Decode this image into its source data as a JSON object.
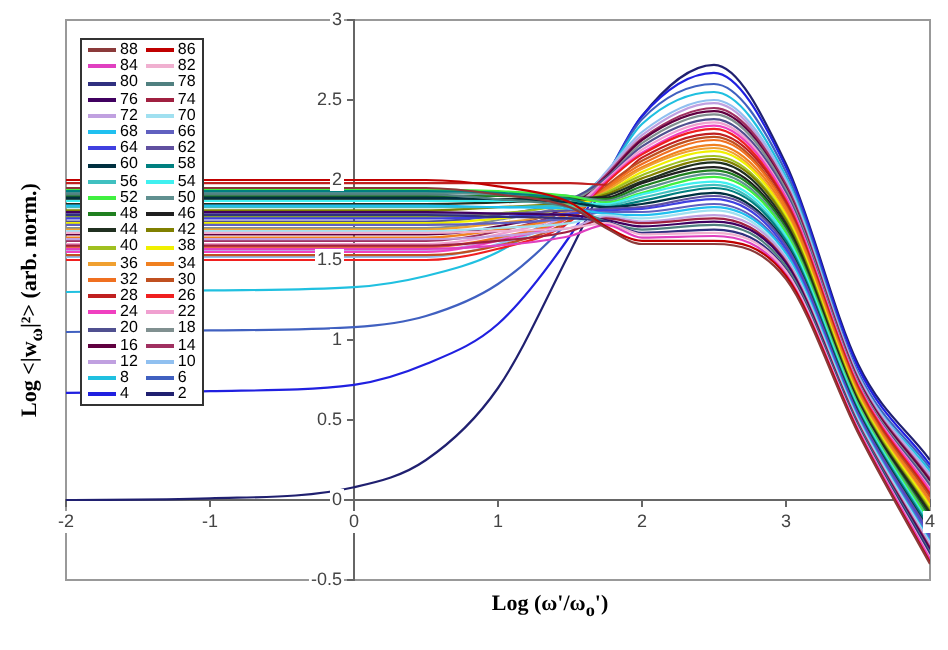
{
  "chart_data": {
    "type": "line",
    "xlabel": "Log (ω'/ω$_{o}$')",
    "ylabel": "Log <|w$_{ω}$|²> (arb. norm.)",
    "x": [
      -2,
      -1,
      0,
      0.5,
      1,
      1.5,
      1.75,
      2,
      2.5,
      3,
      3.5,
      4
    ],
    "xlim": [
      -2,
      4
    ],
    "xticks": [
      -2,
      -1,
      0,
      1,
      2,
      3,
      4
    ],
    "ylim": [
      -0.5,
      3
    ],
    "yticks": [
      -0.5,
      0,
      0.5,
      1,
      1.5,
      2,
      2.5,
      3
    ],
    "grid": false,
    "legend": "top left",
    "marker": "none",
    "line_style": "solid",
    "series": [
      {
        "name": "88",
        "color": "#8b3a3a",
        "values": [
          1.95,
          1.95,
          1.95,
          1.95,
          1.91,
          1.83,
          1.7,
          1.6,
          1.6,
          1.38,
          0.42,
          -0.4
        ]
      },
      {
        "name": "86",
        "color": "#c00000",
        "values": [
          2.0,
          2.0,
          2.0,
          2.0,
          1.96,
          1.86,
          1.71,
          1.62,
          1.62,
          1.4,
          0.43,
          -0.39
        ]
      },
      {
        "name": "84",
        "color": "#e040c0",
        "values": [
          1.57,
          1.57,
          1.57,
          1.57,
          1.59,
          1.65,
          1.72,
          1.64,
          1.65,
          1.41,
          0.44,
          -0.37
        ]
      },
      {
        "name": "82",
        "color": "#f0b0d0",
        "values": [
          1.67,
          1.67,
          1.67,
          1.67,
          1.68,
          1.7,
          1.73,
          1.66,
          1.67,
          1.43,
          0.45,
          -0.36
        ]
      },
      {
        "name": "80",
        "color": "#303080",
        "values": [
          1.78,
          1.78,
          1.78,
          1.78,
          1.77,
          1.76,
          1.74,
          1.67,
          1.69,
          1.44,
          0.46,
          -0.34
        ]
      },
      {
        "name": "78",
        "color": "#508080",
        "values": [
          1.91,
          1.91,
          1.91,
          1.91,
          1.88,
          1.83,
          1.74,
          1.69,
          1.72,
          1.46,
          0.47,
          -0.33
        ]
      },
      {
        "name": "76",
        "color": "#400060",
        "values": [
          1.8,
          1.8,
          1.8,
          1.8,
          1.79,
          1.78,
          1.75,
          1.71,
          1.74,
          1.48,
          0.47,
          -0.31
        ]
      },
      {
        "name": "74",
        "color": "#a02040",
        "values": [
          1.59,
          1.59,
          1.59,
          1.59,
          1.62,
          1.68,
          1.76,
          1.73,
          1.76,
          1.49,
          0.48,
          -0.3
        ]
      },
      {
        "name": "72",
        "color": "#c0a0e0",
        "values": [
          1.63,
          1.63,
          1.63,
          1.63,
          1.65,
          1.7,
          1.77,
          1.74,
          1.78,
          1.51,
          0.49,
          -0.28
        ]
      },
      {
        "name": "70",
        "color": "#a0e0f0",
        "values": [
          1.68,
          1.68,
          1.68,
          1.68,
          1.7,
          1.73,
          1.78,
          1.76,
          1.81,
          1.52,
          0.5,
          -0.27
        ]
      },
      {
        "name": "68",
        "color": "#20c0f0",
        "values": [
          1.84,
          1.84,
          1.84,
          1.84,
          1.83,
          1.82,
          1.79,
          1.78,
          1.83,
          1.54,
          0.51,
          -0.26
        ]
      },
      {
        "name": "66",
        "color": "#6060c0",
        "values": [
          1.72,
          1.72,
          1.72,
          1.72,
          1.73,
          1.76,
          1.8,
          1.8,
          1.85,
          1.55,
          0.52,
          -0.24
        ]
      },
      {
        "name": "64",
        "color": "#4040e0",
        "values": [
          1.76,
          1.76,
          1.76,
          1.76,
          1.77,
          1.79,
          1.81,
          1.82,
          1.88,
          1.57,
          0.53,
          -0.23
        ]
      },
      {
        "name": "62",
        "color": "#6050a0",
        "values": [
          1.79,
          1.79,
          1.79,
          1.79,
          1.79,
          1.81,
          1.82,
          1.83,
          1.9,
          1.59,
          0.54,
          -0.21
        ]
      },
      {
        "name": "60",
        "color": "#003040",
        "values": [
          1.89,
          1.89,
          1.89,
          1.89,
          1.88,
          1.86,
          1.83,
          1.85,
          1.92,
          1.6,
          0.55,
          -0.2
        ]
      },
      {
        "name": "58",
        "color": "#008080",
        "values": [
          1.93,
          1.93,
          1.93,
          1.93,
          1.92,
          1.88,
          1.83,
          1.87,
          1.95,
          1.62,
          0.56,
          -0.18
        ]
      },
      {
        "name": "56",
        "color": "#40c0c0",
        "values": [
          1.83,
          1.83,
          1.83,
          1.83,
          1.83,
          1.84,
          1.84,
          1.89,
          1.97,
          1.63,
          0.57,
          -0.17
        ]
      },
      {
        "name": "54",
        "color": "#40f0f0",
        "values": [
          1.87,
          1.87,
          1.87,
          1.87,
          1.87,
          1.86,
          1.85,
          1.91,
          1.99,
          1.65,
          0.58,
          -0.16
        ]
      },
      {
        "name": "52",
        "color": "#40f040",
        "values": [
          1.94,
          1.94,
          1.94,
          1.94,
          1.93,
          1.9,
          1.86,
          1.92,
          2.02,
          1.67,
          0.59,
          -0.14
        ]
      },
      {
        "name": "50",
        "color": "#609090",
        "values": [
          1.92,
          1.92,
          1.92,
          1.92,
          1.91,
          1.9,
          1.87,
          1.94,
          2.04,
          1.68,
          0.6,
          -0.13
        ]
      },
      {
        "name": "48",
        "color": "#208020",
        "values": [
          1.9,
          1.9,
          1.9,
          1.9,
          1.9,
          1.89,
          1.88,
          1.96,
          2.06,
          1.7,
          0.6,
          -0.11
        ]
      },
      {
        "name": "46",
        "color": "#202020",
        "values": [
          1.88,
          1.88,
          1.88,
          1.88,
          1.88,
          1.89,
          1.89,
          1.98,
          2.08,
          1.71,
          0.61,
          -0.1
        ]
      },
      {
        "name": "44",
        "color": "#203020",
        "values": [
          1.85,
          1.85,
          1.85,
          1.85,
          1.86,
          1.88,
          1.9,
          1.99,
          2.11,
          1.73,
          0.62,
          -0.08
        ]
      },
      {
        "name": "42",
        "color": "#808000",
        "values": [
          1.81,
          1.81,
          1.81,
          1.81,
          1.83,
          1.86,
          1.91,
          2.01,
          2.13,
          1.75,
          0.63,
          -0.07
        ]
      },
      {
        "name": "40",
        "color": "#a0c020",
        "values": [
          1.77,
          1.77,
          1.77,
          1.77,
          1.79,
          1.85,
          1.92,
          2.03,
          2.15,
          1.76,
          0.64,
          -0.06
        ]
      },
      {
        "name": "38",
        "color": "#f0f000",
        "values": [
          1.73,
          1.73,
          1.73,
          1.73,
          1.76,
          1.83,
          1.92,
          2.05,
          2.18,
          1.78,
          0.65,
          -0.04
        ]
      },
      {
        "name": "36",
        "color": "#f0a030",
        "values": [
          1.69,
          1.69,
          1.69,
          1.69,
          1.73,
          1.81,
          1.93,
          2.07,
          2.2,
          1.79,
          0.66,
          -0.03
        ]
      },
      {
        "name": "34",
        "color": "#f08020",
        "values": [
          1.64,
          1.64,
          1.64,
          1.64,
          1.69,
          1.79,
          1.94,
          2.08,
          2.22,
          1.81,
          0.67,
          -0.01
        ]
      },
      {
        "name": "32",
        "color": "#f07020",
        "values": [
          1.58,
          1.58,
          1.58,
          1.58,
          1.64,
          1.77,
          1.95,
          2.1,
          2.25,
          1.83,
          0.68,
          0.0
        ]
      },
      {
        "name": "30",
        "color": "#c05020",
        "values": [
          1.53,
          1.53,
          1.53,
          1.53,
          1.59,
          1.75,
          1.96,
          2.12,
          2.27,
          1.84,
          0.69,
          0.02
        ]
      },
      {
        "name": "28",
        "color": "#c02020",
        "values": [
          1.98,
          1.98,
          1.98,
          1.98,
          1.98,
          1.98,
          1.97,
          2.14,
          2.29,
          1.86,
          0.7,
          0.03
        ]
      },
      {
        "name": "26",
        "color": "#f02020",
        "values": [
          1.5,
          1.5,
          1.5,
          1.5,
          1.57,
          1.74,
          1.98,
          2.16,
          2.32,
          1.87,
          0.71,
          0.04
        ]
      },
      {
        "name": "24",
        "color": "#f040c0",
        "values": [
          1.55,
          1.55,
          1.55,
          1.55,
          1.62,
          1.77,
          1.99,
          2.17,
          2.34,
          1.89,
          0.72,
          0.06
        ]
      },
      {
        "name": "22",
        "color": "#f0a0d0",
        "values": [
          1.6,
          1.6,
          1.6,
          1.6,
          1.66,
          1.805,
          2.0,
          2.19,
          2.36,
          1.9,
          0.725,
          0.07
        ]
      },
      {
        "name": "20",
        "color": "#505090",
        "values": [
          1.74,
          1.74,
          1.74,
          1.74,
          1.78,
          1.88,
          2.01,
          2.21,
          2.38,
          1.92,
          0.73,
          0.09
        ]
      },
      {
        "name": "18",
        "color": "#809090",
        "values": [
          1.7,
          1.7,
          1.7,
          1.7,
          1.75,
          1.86,
          2.01,
          2.23,
          2.41,
          1.94,
          0.74,
          0.1
        ]
      },
      {
        "name": "16",
        "color": "#600040",
        "values": [
          1.66,
          1.66,
          1.66,
          1.66,
          1.71,
          1.84,
          2.02,
          2.25,
          2.43,
          1.95,
          0.75,
          0.12
        ]
      },
      {
        "name": "14",
        "color": "#a03060",
        "values": [
          1.62,
          1.62,
          1.62,
          1.62,
          1.68,
          1.83,
          2.03,
          2.26,
          2.45,
          1.97,
          0.76,
          0.13
        ]
      },
      {
        "name": "12",
        "color": "#c0a0e0",
        "values": [
          1.56,
          1.56,
          1.56,
          1.56,
          1.63,
          1.8,
          2.04,
          2.28,
          2.48,
          1.98,
          0.77,
          0.15
        ]
      },
      {
        "name": "10",
        "color": "#90c0f0",
        "values": [
          1.52,
          1.52,
          1.52,
          1.52,
          1.6,
          1.79,
          2.05,
          2.3,
          2.5,
          2.0,
          0.78,
          0.16
        ]
      },
      {
        "name": "8",
        "color": "#20c0e0",
        "values": [
          1.3,
          1.31,
          1.33,
          1.4,
          1.55,
          1.85,
          2.04,
          2.35,
          2.55,
          2.02,
          0.78,
          0.18
        ]
      },
      {
        "name": "6",
        "color": "#4060c0",
        "values": [
          1.05,
          1.06,
          1.08,
          1.15,
          1.35,
          1.75,
          2.03,
          2.38,
          2.6,
          2.05,
          0.8,
          0.2
        ]
      },
      {
        "name": "4",
        "color": "#2020e0",
        "values": [
          0.67,
          0.68,
          0.72,
          0.85,
          1.1,
          1.65,
          2.02,
          2.4,
          2.67,
          2.08,
          0.83,
          0.22
        ]
      },
      {
        "name": "2",
        "color": "#202070",
        "values": [
          0.0,
          0.01,
          0.08,
          0.25,
          0.7,
          1.55,
          2.0,
          2.4,
          2.72,
          2.1,
          0.85,
          0.25
        ]
      }
    ]
  }
}
